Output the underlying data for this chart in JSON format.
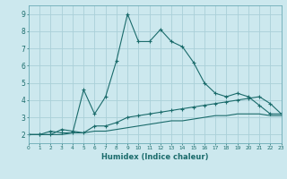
{
  "xlabel": "Humidex (Indice chaleur)",
  "ylabel": "",
  "bg_color": "#cce8ee",
  "grid_color": "#aad0d8",
  "line_color": "#1a6b6b",
  "spine_color": "#6aabb5",
  "x_min": 0,
  "x_max": 23,
  "y_min": 1.5,
  "y_max": 9.5,
  "line1_x": [
    0,
    1,
    2,
    3,
    4,
    5,
    6,
    7,
    8,
    9,
    10,
    11,
    12,
    13,
    14,
    15,
    16,
    17,
    18,
    19,
    20,
    21,
    22,
    23
  ],
  "line1_y": [
    2.0,
    2.0,
    2.2,
    2.1,
    2.1,
    4.6,
    3.2,
    4.2,
    6.3,
    9.0,
    7.4,
    7.4,
    8.1,
    7.4,
    7.1,
    6.2,
    5.0,
    4.4,
    4.2,
    4.4,
    4.2,
    3.7,
    3.2,
    3.2
  ],
  "line2_x": [
    0,
    1,
    2,
    3,
    4,
    5,
    6,
    7,
    8,
    9,
    10,
    11,
    12,
    13,
    14,
    15,
    16,
    17,
    18,
    19,
    20,
    21,
    22,
    23
  ],
  "line2_y": [
    2.0,
    2.0,
    2.0,
    2.3,
    2.2,
    2.1,
    2.5,
    2.5,
    2.7,
    3.0,
    3.1,
    3.2,
    3.3,
    3.4,
    3.5,
    3.6,
    3.7,
    3.8,
    3.9,
    4.0,
    4.1,
    4.2,
    3.8,
    3.2
  ],
  "line3_x": [
    0,
    1,
    2,
    3,
    4,
    5,
    6,
    7,
    8,
    9,
    10,
    11,
    12,
    13,
    14,
    15,
    16,
    17,
    18,
    19,
    20,
    21,
    22,
    23
  ],
  "line3_y": [
    2.0,
    2.0,
    2.0,
    2.0,
    2.1,
    2.1,
    2.2,
    2.2,
    2.3,
    2.4,
    2.5,
    2.6,
    2.7,
    2.8,
    2.8,
    2.9,
    3.0,
    3.1,
    3.1,
    3.2,
    3.2,
    3.2,
    3.1,
    3.1
  ],
  "xtick_fontsize": 4.2,
  "ytick_fontsize": 5.5,
  "xlabel_fontsize": 6.0,
  "linewidth": 0.8,
  "markersize": 3.0
}
